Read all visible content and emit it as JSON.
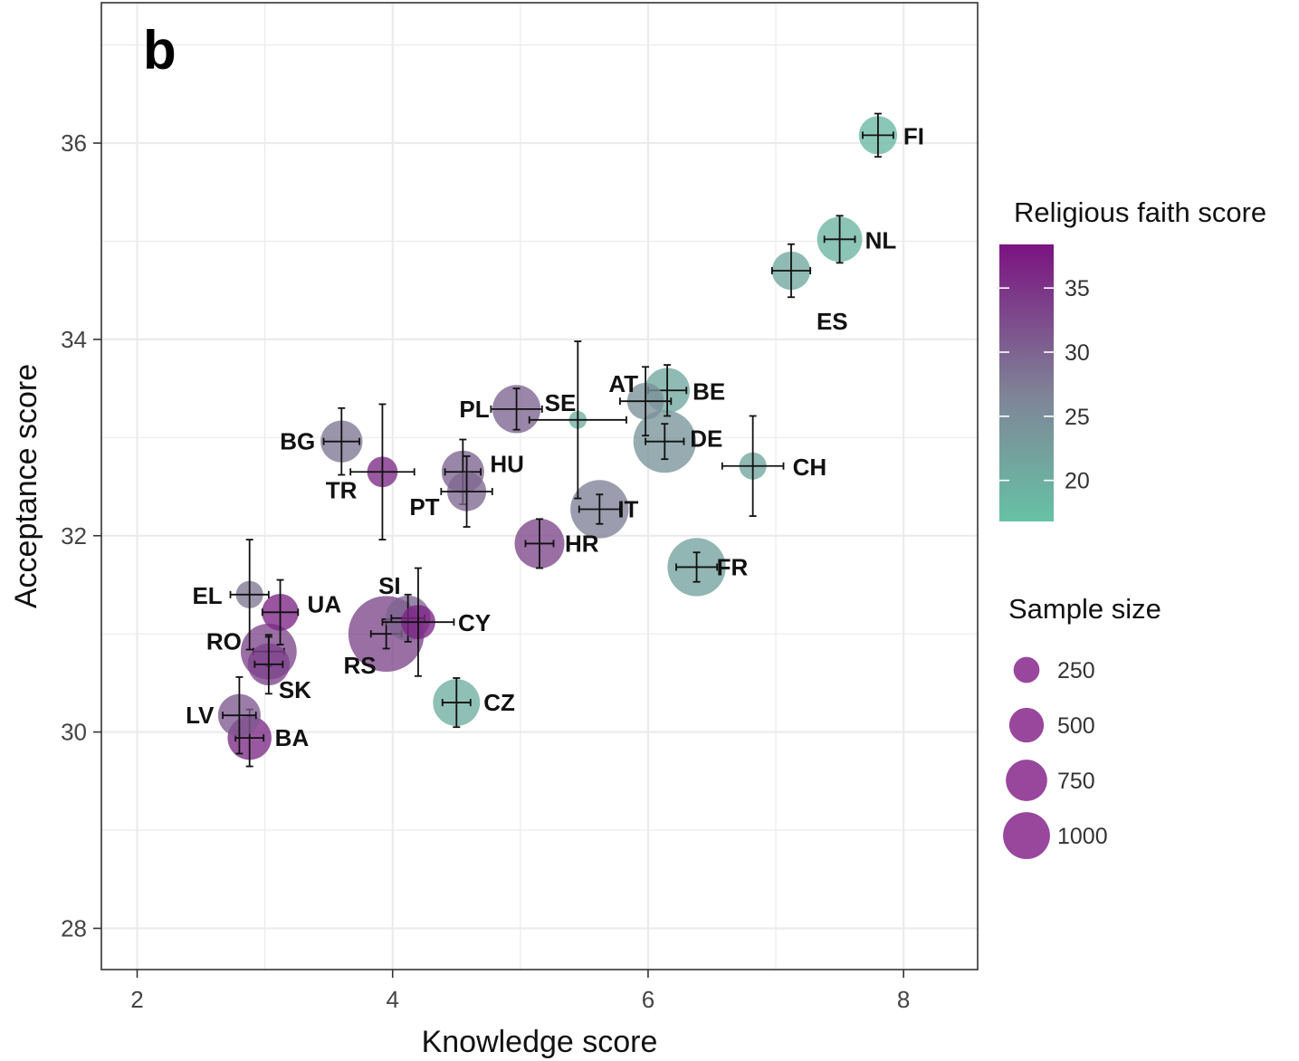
{
  "chart_data": {
    "type": "scatter",
    "panel_label": "b",
    "xlabel": "Knowledge score",
    "ylabel": "Acceptance score",
    "xlim": [
      1.72,
      8.58
    ],
    "ylim": [
      27.58,
      37.43
    ],
    "x_ticks": [
      2,
      4,
      6,
      8
    ],
    "y_ticks": [
      28,
      30,
      32,
      34,
      36
    ],
    "grid": true,
    "colors": {
      "low": "#66c2a5",
      "mid": "#7f8597",
      "high": "#7b1381"
    },
    "color_legend": {
      "title": "Religious faith score",
      "min": 16.8,
      "max": 38.4,
      "ticks": [
        20,
        25,
        30,
        35
      ]
    },
    "size_legend": {
      "title": "Sample size",
      "values": [
        250,
        500,
        750,
        1000
      ]
    },
    "points": [
      {
        "label": "FI",
        "x": 7.8,
        "y": 36.08,
        "xerr": 0.12,
        "yerr": 0.22,
        "faith": 18.5,
        "size": 200
      },
      {
        "label": "NL",
        "x": 7.5,
        "y": 35.02,
        "xerr": 0.12,
        "yerr": 0.24,
        "faith": 19.0,
        "size": 300
      },
      {
        "label": "ES",
        "x": 7.12,
        "y": 34.7,
        "xerr": 0.15,
        "yerr": 0.27,
        "faith": 21.0,
        "size": 200
      },
      {
        "label": "AT",
        "x": 5.98,
        "y": 33.37,
        "xerr": 0.2,
        "yerr": 0.35,
        "faith": 25.0,
        "size": 180
      },
      {
        "label": "BE",
        "x": 6.15,
        "y": 33.48,
        "xerr": 0.15,
        "yerr": 0.26,
        "faith": 21.0,
        "size": 300
      },
      {
        "label": "DE",
        "x": 6.13,
        "y": 32.96,
        "xerr": 0.15,
        "yerr": 0.18,
        "faith": 24.0,
        "size": 650
      },
      {
        "label": "SE",
        "x": 5.45,
        "y": 33.18,
        "xerr": 0.38,
        "yerr": 0.8,
        "faith": 20.0,
        "size": 20
      },
      {
        "label": "PL",
        "x": 4.97,
        "y": 33.29,
        "xerr": 0.2,
        "yerr": 0.21,
        "faith": 30.0,
        "size": 350
      },
      {
        "label": "CH",
        "x": 6.82,
        "y": 32.71,
        "xerr": 0.24,
        "yerr": 0.51,
        "faith": 21.5,
        "size": 80
      },
      {
        "label": "IT",
        "x": 5.62,
        "y": 32.27,
        "xerr": 0.16,
        "yerr": 0.15,
        "faith": 27.0,
        "size": 550
      },
      {
        "label": "HR",
        "x": 5.15,
        "y": 31.92,
        "xerr": 0.11,
        "yerr": 0.25,
        "faith": 33.0,
        "size": 380
      },
      {
        "label": "FR",
        "x": 6.38,
        "y": 31.68,
        "xerr": 0.16,
        "yerr": 0.15,
        "faith": 22.0,
        "size": 550
      },
      {
        "label": "BG",
        "x": 3.6,
        "y": 32.96,
        "xerr": 0.14,
        "yerr": 0.34,
        "faith": 28.0,
        "size": 250
      },
      {
        "label": "TR",
        "x": 3.92,
        "y": 32.65,
        "xerr": 0.25,
        "yerr": 0.69,
        "faith": 36.0,
        "size": 110
      },
      {
        "label": "HU",
        "x": 4.55,
        "y": 32.65,
        "xerr": 0.14,
        "yerr": 0.33,
        "faith": 30.0,
        "size": 260
      },
      {
        "label": "PT",
        "x": 4.58,
        "y": 32.45,
        "xerr": 0.2,
        "yerr": 0.36,
        "faith": 29.5,
        "size": 210
      },
      {
        "label": "EL",
        "x": 2.88,
        "y": 31.4,
        "xerr": 0.15,
        "yerr": 0.56,
        "faith": 28.0,
        "size": 80
      },
      {
        "label": "UA",
        "x": 3.12,
        "y": 31.22,
        "xerr": 0.14,
        "yerr": 0.33,
        "faith": 36.5,
        "size": 180
      },
      {
        "label": "SI",
        "x": 4.12,
        "y": 31.16,
        "xerr": 0.13,
        "yerr": 0.24,
        "faith": 30.0,
        "size": 300
      },
      {
        "label": "CY",
        "x": 4.2,
        "y": 31.12,
        "xerr": 0.28,
        "yerr": 0.55,
        "faith": 36.5,
        "size": 150
      },
      {
        "label": "RS",
        "x": 3.95,
        "y": 31.0,
        "xerr": 0.12,
        "yerr": 0.15,
        "faith": 33.0,
        "size": 1000
      },
      {
        "label": "RO",
        "x": 3.03,
        "y": 30.82,
        "xerr": 0.12,
        "yerr": 0.15,
        "faith": 33.0,
        "size": 500
      },
      {
        "label": "SK",
        "x": 3.03,
        "y": 30.69,
        "xerr": 0.11,
        "yerr": 0.3,
        "faith": 33.5,
        "size": 250
      },
      {
        "label": "CZ",
        "x": 4.5,
        "y": 30.3,
        "xerr": 0.11,
        "yerr": 0.25,
        "faith": 20.0,
        "size": 330
      },
      {
        "label": "LV",
        "x": 2.8,
        "y": 30.17,
        "xerr": 0.13,
        "yerr": 0.39,
        "faith": 31.0,
        "size": 260
      },
      {
        "label": "BA",
        "x": 2.88,
        "y": 29.94,
        "xerr": 0.11,
        "yerr": 0.29,
        "faith": 36.0,
        "size": 280
      }
    ]
  }
}
